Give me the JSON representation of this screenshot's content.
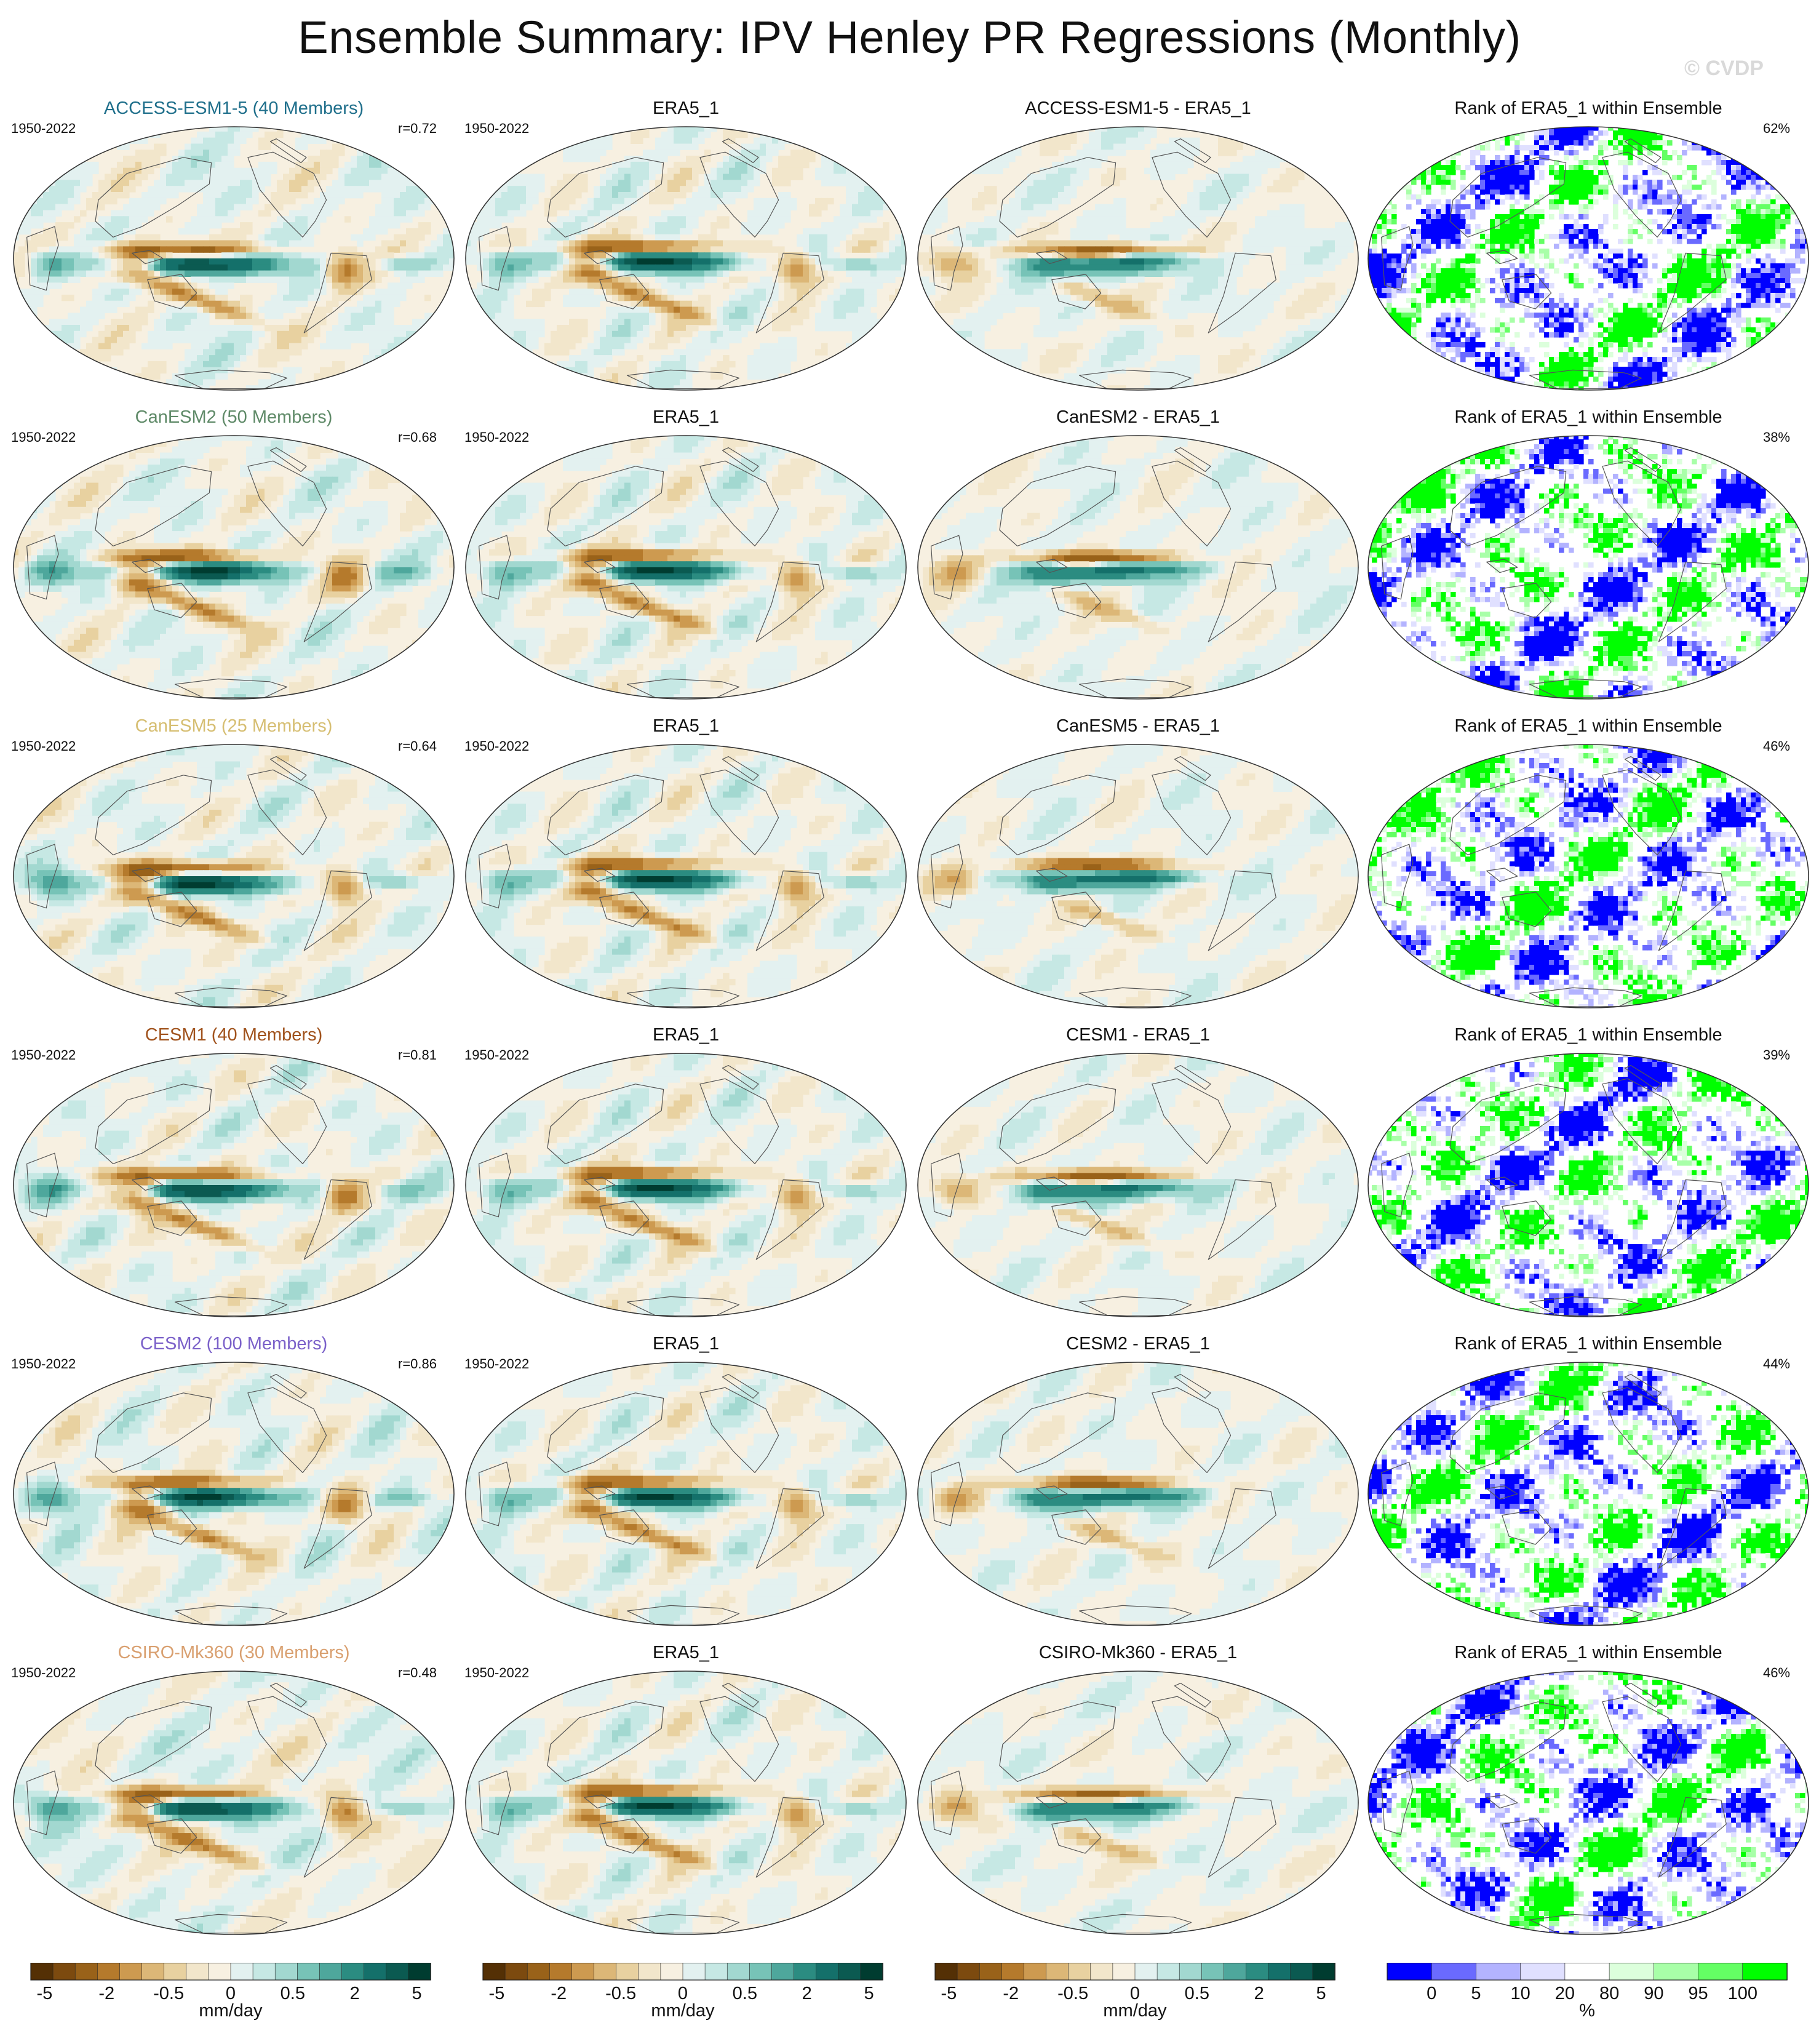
{
  "title": "Ensemble Summary: IPV Henley PR Regressions (Monthly)",
  "watermark": "© CVDP",
  "years": "1950-2022",
  "rows": [
    {
      "model_title": "ACCESS-ESM1-5 (40 Members)",
      "model_color": "#1f6f8b",
      "r": "r=0.72",
      "era_title": "ERA5_1",
      "diff_title": "ACCESS-ESM1-5 - ERA5_1",
      "rank_title": "Rank of ERA5_1 within Ensemble",
      "pct": "62%"
    },
    {
      "model_title": "CanESM2 (50 Members)",
      "model_color": "#5f8a68",
      "r": "r=0.68",
      "era_title": "ERA5_1",
      "diff_title": "CanESM2 - ERA5_1",
      "rank_title": "Rank of ERA5_1 within Ensemble",
      "pct": "38%"
    },
    {
      "model_title": "CanESM5 (25 Members)",
      "model_color": "#d6be72",
      "r": "r=0.64",
      "era_title": "ERA5_1",
      "diff_title": "CanESM5 - ERA5_1",
      "rank_title": "Rank of ERA5_1 within Ensemble",
      "pct": "46%"
    },
    {
      "model_title": "CESM1 (40 Members)",
      "model_color": "#a0521c",
      "r": "r=0.81",
      "era_title": "ERA5_1",
      "diff_title": "CESM1 - ERA5_1",
      "rank_title": "Rank of ERA5_1 within Ensemble",
      "pct": "39%"
    },
    {
      "model_title": "CESM2 (100 Members)",
      "model_color": "#7b61c9",
      "r": "r=0.86",
      "era_title": "ERA5_1",
      "diff_title": "CESM2 - ERA5_1",
      "rank_title": "Rank of ERA5_1 within Ensemble",
      "pct": "44%"
    },
    {
      "model_title": "CSIRO-Mk360 (30 Members)",
      "model_color": "#d9a070",
      "r": "r=0.48",
      "era_title": "ERA5_1",
      "diff_title": "CSIRO-Mk360 - ERA5_1",
      "rank_title": "Rank of ERA5_1 within Ensemble",
      "pct": "46%"
    }
  ],
  "chart_data": {
    "type": "heatmap",
    "projection": "global map panels (6 rows x 4 columns)",
    "columns": [
      "model ensemble mean regression",
      "ERA5_1 regression",
      "model minus ERA5_1",
      "rank of ERA5_1 within ensemble"
    ],
    "colorbars": [
      {
        "ticks": [
          "-5",
          "-2",
          "-0.5",
          "0",
          "0.5",
          "2",
          "5"
        ],
        "unit": "mm/day",
        "colors": [
          "#543005",
          "#7c4a0f",
          "#996219",
          "#b57a2c",
          "#cd9a50",
          "#dcb777",
          "#e8d1a0",
          "#f2e6cb",
          "#f7f0e1",
          "#e3f1f0",
          "#c6e8e4",
          "#a2d8d0",
          "#77c3b7",
          "#4ea79c",
          "#2b8c81",
          "#14706a",
          "#0b5a51",
          "#003c30"
        ]
      },
      {
        "ticks": [
          "0",
          "5",
          "10",
          "20",
          "80",
          "90",
          "95",
          "100"
        ],
        "unit": "%",
        "colors": [
          "#0000ff",
          "#6a6aff",
          "#b3b3ff",
          "#e0e0ff",
          "#ffffff",
          "#dcffdc",
          "#a8ffa8",
          "#64ff64",
          "#00ff00"
        ]
      }
    ]
  }
}
